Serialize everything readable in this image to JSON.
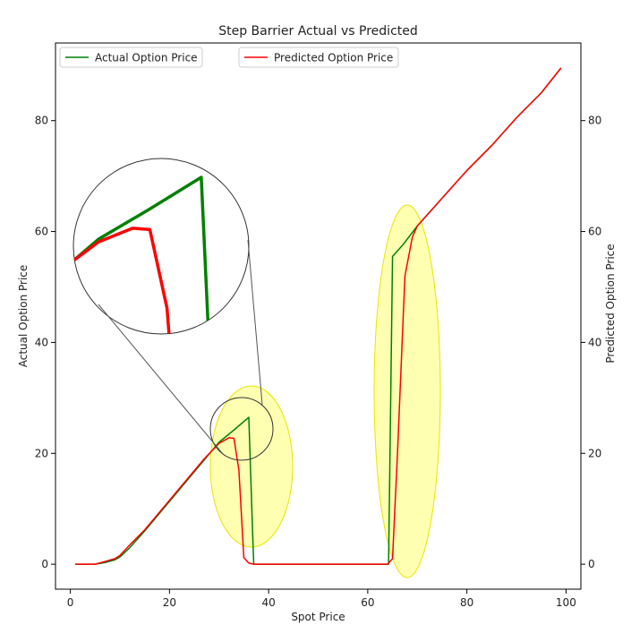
{
  "chart_data": {
    "type": "line",
    "title": "Step Barrier Actual vs Predicted",
    "xlabel": "Spot Price",
    "ylabel_left": "Actual Option Price",
    "ylabel_right": "Predicted Option Price",
    "xlim": [
      -3,
      103
    ],
    "ylim": [
      -4.5,
      94
    ],
    "xticks": [
      0,
      20,
      40,
      60,
      80,
      100
    ],
    "yticks": [
      0,
      20,
      40,
      60,
      80
    ],
    "legend_placement": "top",
    "grid": false,
    "series": [
      {
        "name": "Actual Option Price",
        "color": "#008000",
        "x": [
          1,
          5,
          7,
          9,
          10,
          12,
          15,
          18,
          21,
          24,
          27,
          30,
          33,
          36,
          36.8,
          37,
          40,
          50,
          60,
          64,
          64.2,
          65,
          67,
          70,
          75,
          80,
          85,
          90,
          95,
          99
        ],
        "y": [
          0,
          0,
          0.3,
          0.8,
          1.3,
          3,
          6,
          9.2,
          12.4,
          15.6,
          18.8,
          22,
          24.2,
          26.5,
          5,
          0,
          0,
          0,
          0,
          0,
          0,
          55.5,
          57.5,
          61,
          66,
          71,
          75.5,
          80.5,
          85,
          89.5
        ]
      },
      {
        "name": "Predicted Option Price",
        "color": "#ff0000",
        "x": [
          1,
          5,
          7,
          9,
          10,
          12,
          15,
          18,
          21,
          24,
          27,
          30,
          32,
          33,
          34,
          35,
          36,
          37,
          40,
          50,
          60,
          63,
          64,
          65,
          66,
          67.5,
          69,
          70,
          75,
          80,
          85,
          90,
          95,
          99
        ],
        "y": [
          0,
          0,
          0.5,
          1,
          1.6,
          3.5,
          6.2,
          9.4,
          12.6,
          15.8,
          19,
          21.8,
          22.8,
          22.7,
          17,
          1.2,
          0.2,
          0,
          0,
          0,
          0,
          0,
          0,
          1,
          20,
          52,
          59,
          61,
          66,
          71,
          75.5,
          80.5,
          85,
          89.5
        ]
      }
    ]
  }
}
